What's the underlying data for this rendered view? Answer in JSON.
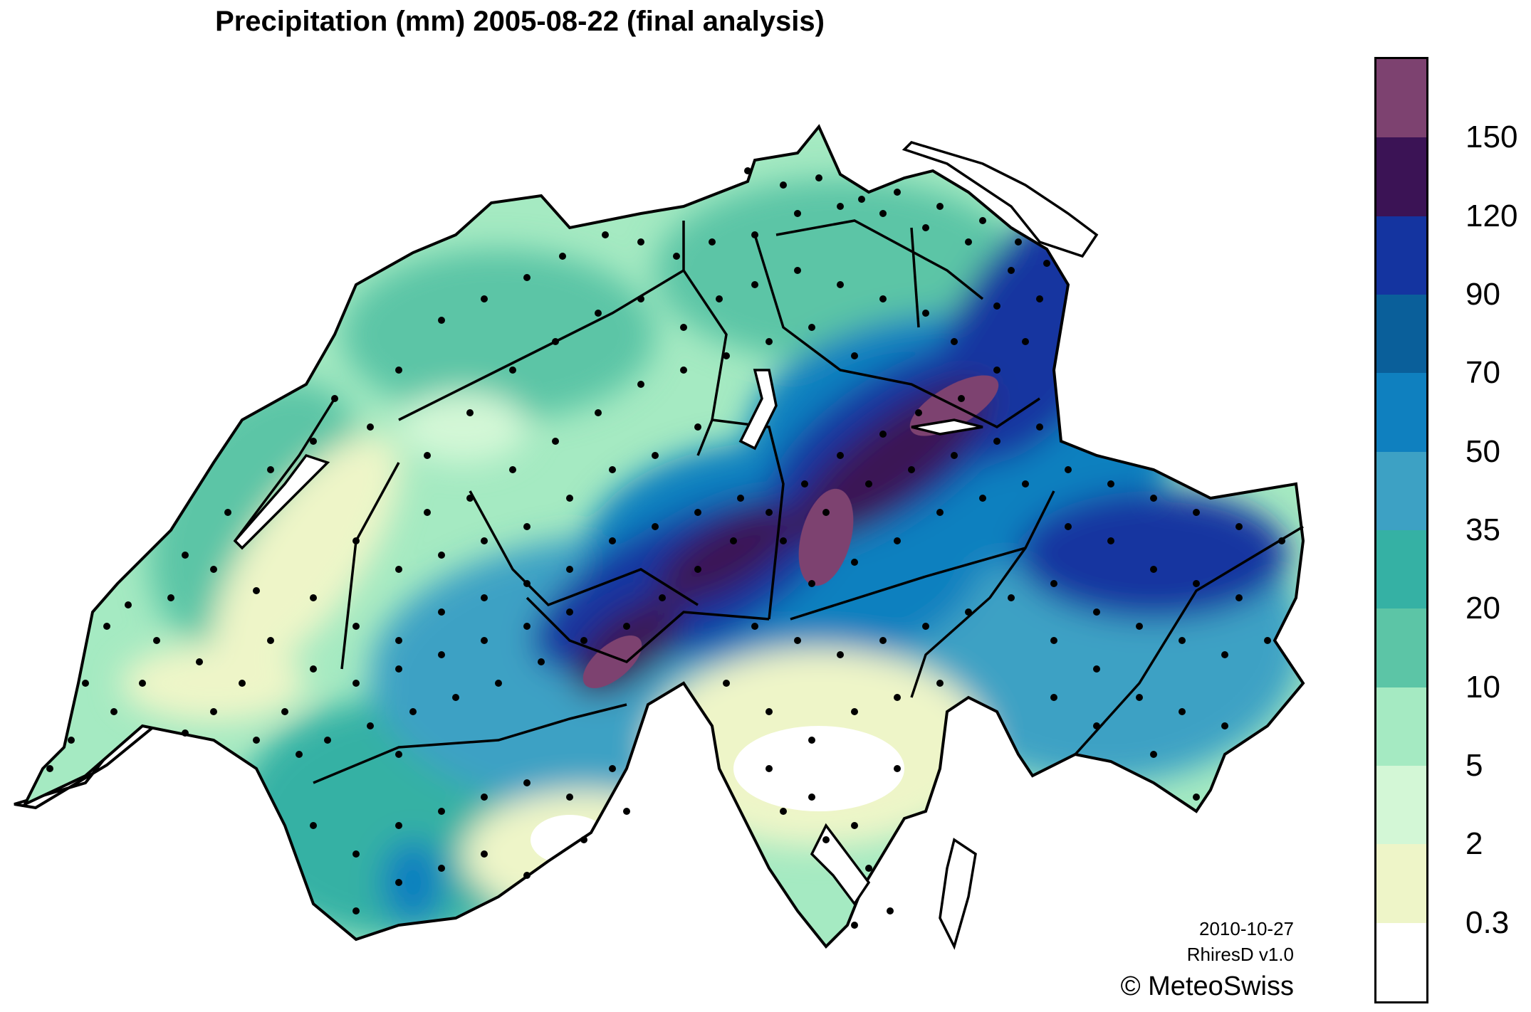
{
  "title": "Precipitation (mm) 2005-08-22 (final analysis)",
  "legend": {
    "ticks": [
      "150",
      "120",
      "90",
      "70",
      "50",
      "35",
      "20",
      "10",
      "5",
      "2",
      "0.3"
    ],
    "colors": [
      "#7d4270",
      "#3b1355",
      "#1434a0",
      "#0a5f9a",
      "#0f80bf",
      "#3da1c4",
      "#35b1a4",
      "#5cc5a6",
      "#a5eac2",
      "#d3f7d6",
      "#eef5c8",
      "#ffffff"
    ]
  },
  "credits": {
    "date": "2010-10-27",
    "product": "RhiresD v1.0",
    "copyright": "© MeteoSwiss"
  }
}
